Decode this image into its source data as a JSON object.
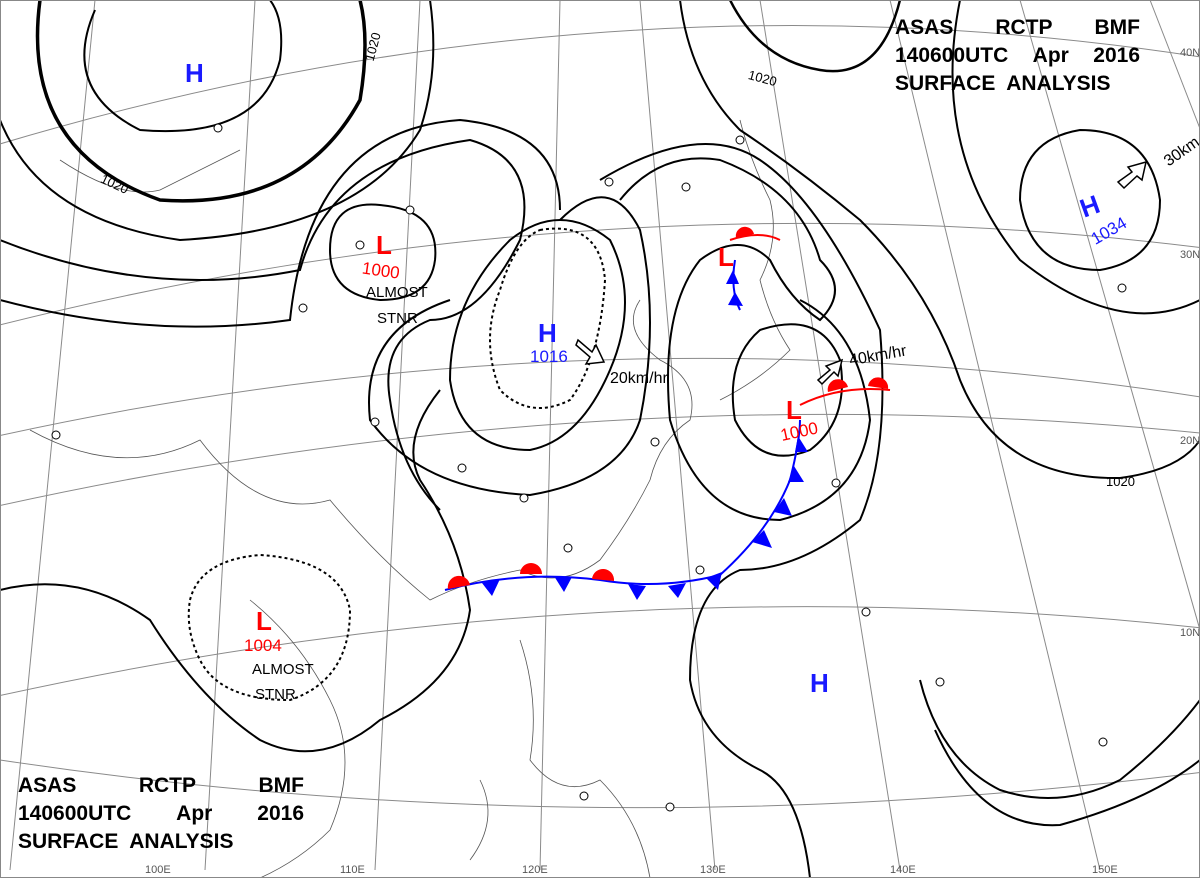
{
  "header_top": {
    "line1": [
      "ASAS",
      "RCTP",
      "BMF"
    ],
    "line2": [
      "140600UTC",
      "Apr",
      "2016"
    ],
    "line3": "SURFACE  ANALYSIS"
  },
  "header_bottom": {
    "line1": [
      "ASAS",
      "RCTP",
      "BMF"
    ],
    "line2": [
      "140600UTC",
      "Apr",
      "2016"
    ],
    "line3": "SURFACE  ANALYSIS"
  },
  "colors": {
    "high": "#1a1aff",
    "low": "#ff0000",
    "cold_front": "#0000ff",
    "warm_front": "#ff0000",
    "isobar": "#000000",
    "grid": "#808080"
  },
  "systems": [
    {
      "type": "H",
      "pressure": ""
    },
    {
      "type": "L",
      "pressure": "1000",
      "note": [
        "ALMOST",
        "STNR"
      ]
    },
    {
      "type": "H",
      "pressure": "1016",
      "motion": "20km/hr"
    },
    {
      "type": "L",
      "pressure": ""
    },
    {
      "type": "L",
      "pressure": "1000",
      "motion": "40km/hr"
    },
    {
      "type": "L",
      "pressure": "1004",
      "note": [
        "ALMOST",
        "STNR"
      ]
    },
    {
      "type": "H",
      "pressure": ""
    },
    {
      "type": "H",
      "pressure": "1034",
      "motion": "30km"
    }
  ],
  "isobar_labels": [
    "1020",
    "1020",
    "1020",
    "1020"
  ],
  "latitude_labels": [
    "40N",
    "30N",
    "20N",
    "10N"
  ],
  "longitude_labels": [
    "100E",
    "110E",
    "120E",
    "130E",
    "140E",
    "150E"
  ]
}
